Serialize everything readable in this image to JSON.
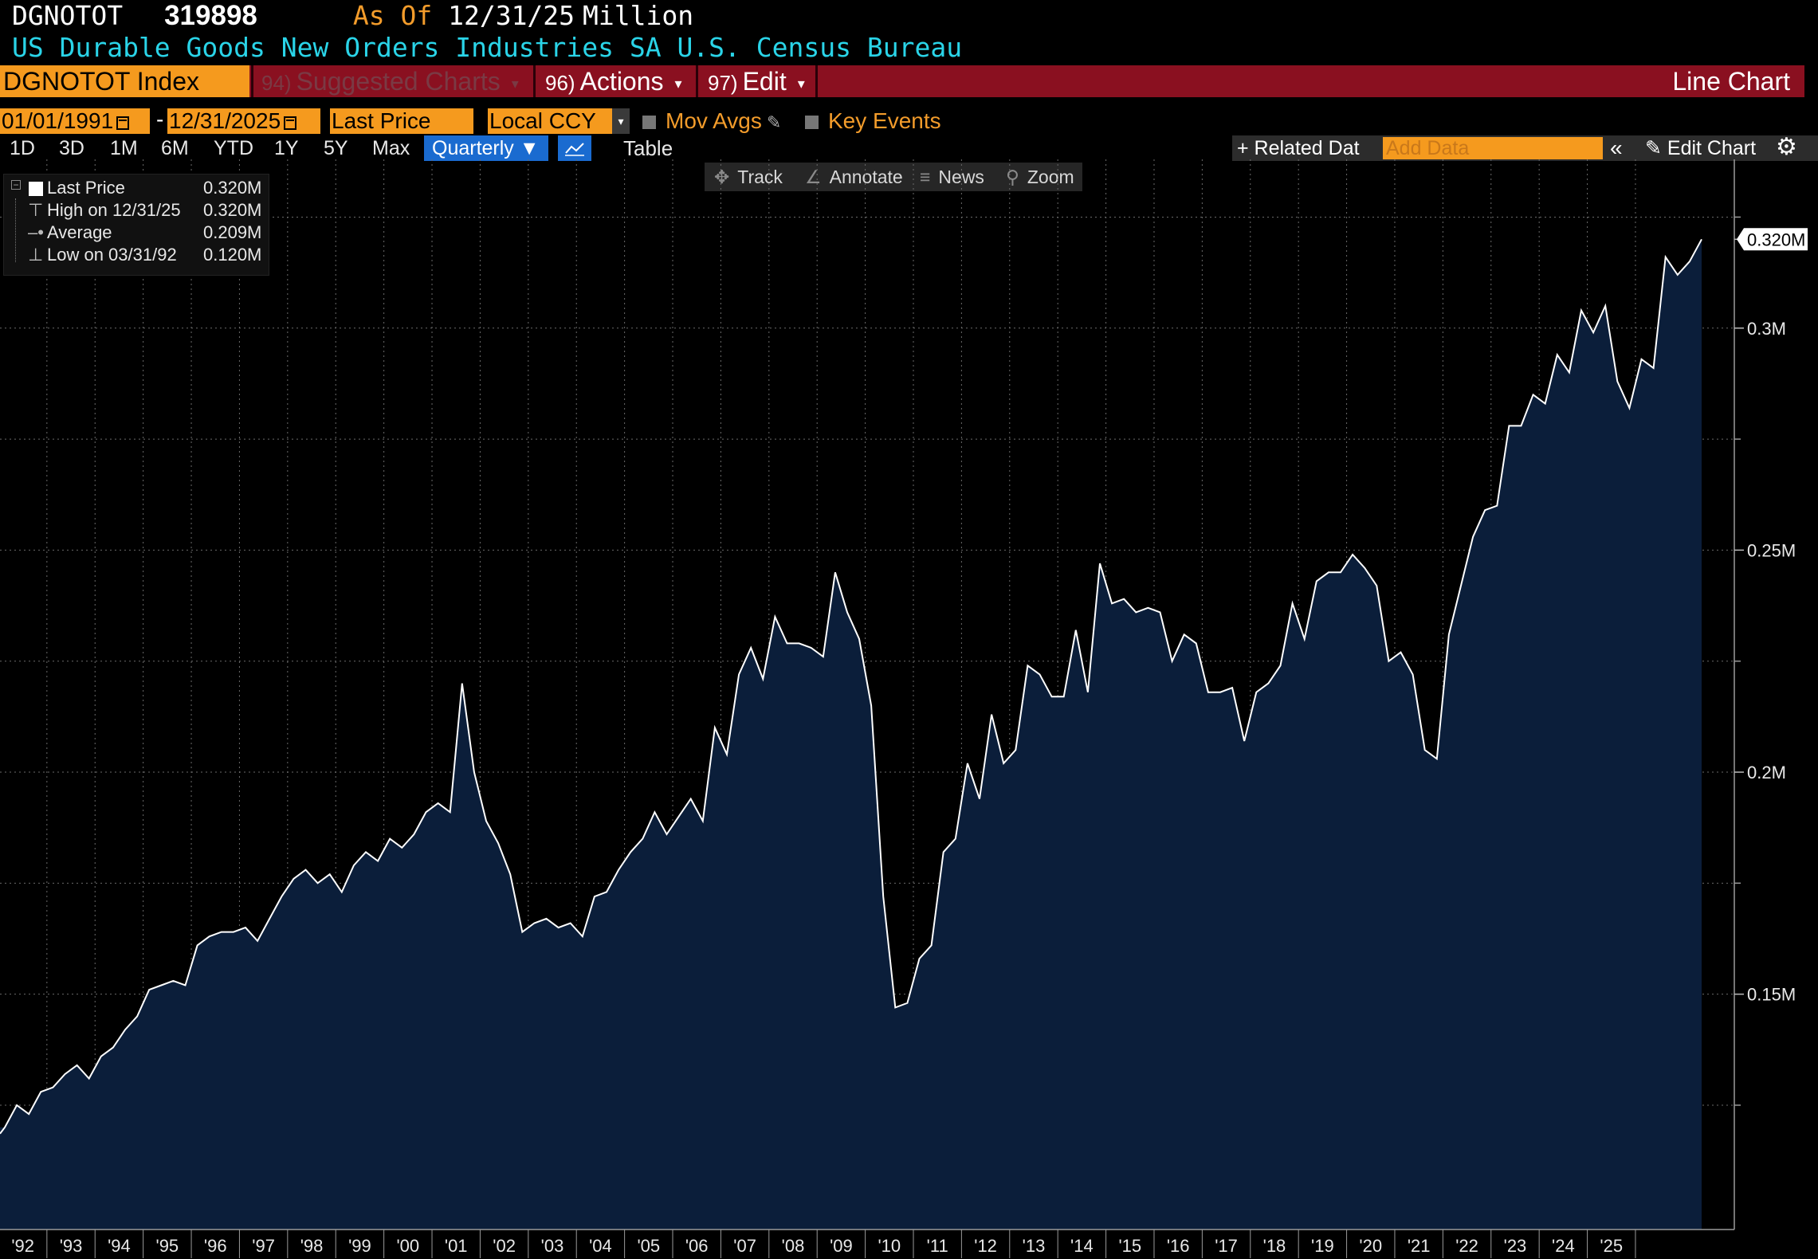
{
  "header": {
    "ticker": "DGNOTOT",
    "last_value": "319898",
    "as_of_label": "As Of",
    "as_of_date": "12/31/25",
    "unit": "Million",
    "description": "US Durable Goods New Orders Industries SA  U.S. Census Bureau"
  },
  "menu": {
    "security": "DGNOTOT Index",
    "suggested_num": "94)",
    "suggested_label": "Suggested Charts",
    "actions_num": "96)",
    "actions_label": "Actions",
    "edit_num": "97)",
    "edit_label": "Edit",
    "chart_type": "Line Chart"
  },
  "controls": {
    "start_date": "01/01/1991",
    "date_separator": "-",
    "end_date": "12/31/2025",
    "field": "Last Price",
    "currency": "Local CCY",
    "mov_avgs": "Mov Avgs",
    "key_events": "Key Events"
  },
  "ranges": [
    "1D",
    "3D",
    "1M",
    "6M",
    "YTD",
    "1Y",
    "5Y",
    "Max"
  ],
  "frequency": "Quarterly",
  "table_label": "Table",
  "related_data": "+ Related Dat",
  "add_data_placeholder": "Add Data",
  "edit_chart": "Edit Chart",
  "tools": {
    "track": "Track",
    "annotate": "Annotate",
    "news": "News",
    "zoom": "Zoom"
  },
  "legend": {
    "last_price_label": "Last Price",
    "last_price_value": "0.320M",
    "high_label": "High on 12/31/25",
    "high_value": "0.320M",
    "average_label": "Average",
    "average_value": "0.209M",
    "low_label": "Low on 03/31/92",
    "low_value": "0.120M"
  },
  "colors": {
    "background": "#000000",
    "line": "#ffffff",
    "area_fill": "#0b1e3a",
    "accent_orange": "#f59a1e",
    "menu_red": "#8a1020",
    "header_cyan": "#2ad4e8"
  },
  "chart_data": {
    "type": "area",
    "frequency": "quarterly",
    "x_start": "1992 Q1",
    "x_end": "2025 Q4",
    "xlabel": "",
    "ylabel": "",
    "ylim": [
      0.097,
      0.338
    ],
    "y_ticks": [
      0.15,
      0.2,
      0.25,
      0.3
    ],
    "y_tick_labels": [
      "0.15M",
      "0.2M",
      "0.25M",
      "0.3M"
    ],
    "x_tick_labels": [
      "'92",
      "'93",
      "'94",
      "'95",
      "'96",
      "'97",
      "'98",
      "'99",
      "'00",
      "'01",
      "'02",
      "'03",
      "'04",
      "'05",
      "'06",
      "'07",
      "'08",
      "'09",
      "'10",
      "'11",
      "'12",
      "'13",
      "'14",
      "'15",
      "'16",
      "'17",
      "'18",
      "'19",
      "'20",
      "'21",
      "'22",
      "'23",
      "'24",
      "'25"
    ],
    "last_value_label": "0.320M",
    "grid": true,
    "series": [
      {
        "values": [
          0.12,
          0.125,
          0.123,
          0.128,
          0.129,
          0.132,
          0.134,
          0.131,
          0.136,
          0.138,
          0.142,
          0.145,
          0.151,
          0.152,
          0.153,
          0.152,
          0.161,
          0.163,
          0.164,
          0.164,
          0.165,
          0.162,
          0.167,
          0.172,
          0.176,
          0.178,
          0.175,
          0.177,
          0.173,
          0.179,
          0.182,
          0.18,
          0.185,
          0.183,
          0.186,
          0.191,
          0.193,
          0.191,
          0.22,
          0.2,
          0.189,
          0.184,
          0.177,
          0.164,
          0.166,
          0.167,
          0.165,
          0.166,
          0.163,
          0.172,
          0.173,
          0.178,
          0.182,
          0.185,
          0.191,
          0.186,
          0.19,
          0.194,
          0.189,
          0.21,
          0.204,
          0.222,
          0.228,
          0.221,
          0.235,
          0.229,
          0.229,
          0.228,
          0.226,
          0.245,
          0.236,
          0.23,
          0.215,
          0.172,
          0.147,
          0.148,
          0.158,
          0.161,
          0.182,
          0.185,
          0.202,
          0.194,
          0.213,
          0.202,
          0.205,
          0.224,
          0.222,
          0.217,
          0.217,
          0.232,
          0.218,
          0.247,
          0.238,
          0.239,
          0.236,
          0.237,
          0.236,
          0.225,
          0.231,
          0.229,
          0.218,
          0.218,
          0.219,
          0.207,
          0.218,
          0.22,
          0.224,
          0.238,
          0.23,
          0.243,
          0.245,
          0.245,
          0.249,
          0.246,
          0.242,
          0.225,
          0.227,
          0.222,
          0.205,
          0.203,
          0.231,
          0.242,
          0.253,
          0.259,
          0.26,
          0.278,
          0.278,
          0.285,
          0.283,
          0.294,
          0.29,
          0.304,
          0.299,
          0.305,
          0.288,
          0.282,
          0.293,
          0.291,
          0.316,
          0.312,
          0.315,
          0.32
        ]
      }
    ]
  }
}
